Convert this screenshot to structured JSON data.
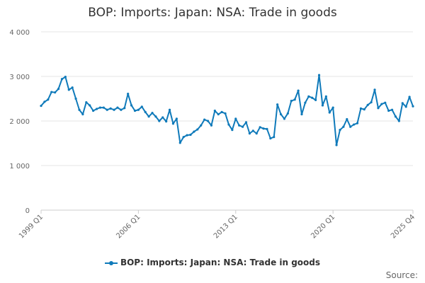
{
  "chart_data": {
    "type": "line",
    "title": "BOP: Imports: Japan: NSA: Trade in goods",
    "xlabel": "",
    "ylabel": "",
    "ylim": [
      0,
      4000
    ],
    "yticks": [
      0,
      1000,
      2000,
      3000,
      4000
    ],
    "ytick_labels": [
      "0",
      "1 000",
      "2 000",
      "3 000",
      "4 000"
    ],
    "x_tick_labels": [
      "1999 Q1",
      "2006 Q1",
      "2013 Q1",
      "2020 Q1",
      "2025 Q4"
    ],
    "x_range": [
      "1999 Q1",
      "2025 Q4"
    ],
    "grid": "horizontal",
    "legend_position": "bottom",
    "series": [
      {
        "name": "BOP: Imports: Japan: NSA: Trade in goods",
        "color": "#0F7ABA",
        "values": [
          2340,
          2430,
          2480,
          2650,
          2640,
          2720,
          2940,
          2990,
          2700,
          2750,
          2500,
          2250,
          2150,
          2420,
          2350,
          2230,
          2270,
          2300,
          2300,
          2250,
          2280,
          2250,
          2300,
          2250,
          2290,
          2610,
          2350,
          2230,
          2250,
          2320,
          2200,
          2100,
          2180,
          2100,
          2000,
          2080,
          1990,
          2250,
          1940,
          2050,
          1510,
          1640,
          1680,
          1690,
          1760,
          1810,
          1900,
          2030,
          2000,
          1900,
          2230,
          2150,
          2200,
          2170,
          1920,
          1800,
          2050,
          1900,
          1870,
          1970,
          1720,
          1780,
          1720,
          1860,
          1830,
          1820,
          1610,
          1640,
          2370,
          2150,
          2050,
          2170,
          2450,
          2480,
          2680,
          2150,
          2410,
          2550,
          2520,
          2470,
          3030,
          2350,
          2550,
          2190,
          2300,
          1460,
          1800,
          1870,
          2040,
          1870,
          1920,
          1950,
          2280,
          2260,
          2360,
          2420,
          2700,
          2290,
          2380,
          2410,
          2230,
          2250,
          2100,
          2000,
          2400,
          2320,
          2540,
          2330
        ]
      }
    ]
  },
  "source_label": "Source:"
}
